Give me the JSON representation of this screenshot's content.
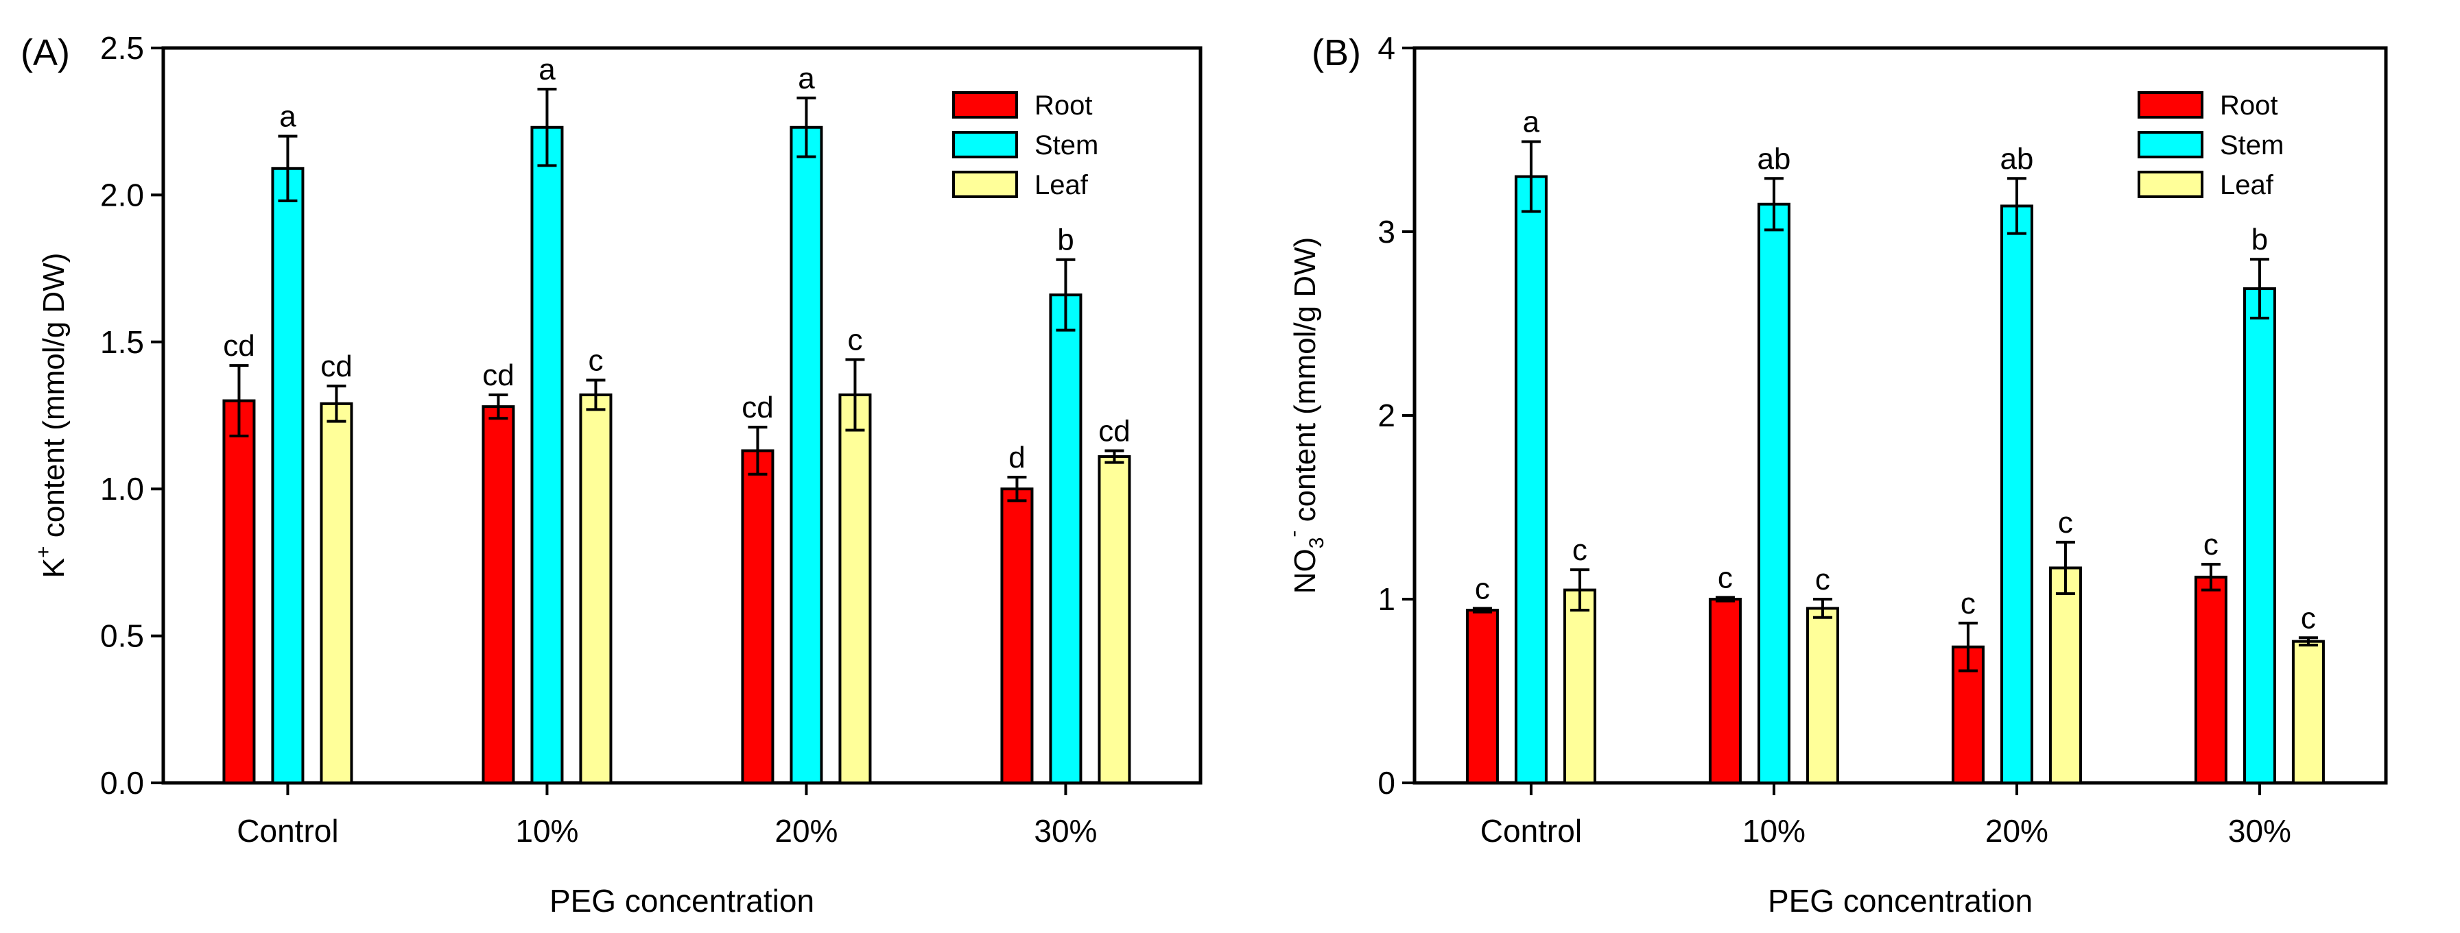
{
  "chart_data": [
    {
      "type": "bar",
      "panel_label": "(A)",
      "title": "",
      "xlabel": "PEG concentration",
      "ylabel_main": "K",
      "ylabel_sup": "+",
      "ylabel_rest": " content (mmol/g DW)",
      "categories": [
        "Control",
        "10%",
        "20%",
        "30%"
      ],
      "ylim": [
        0,
        2.5
      ],
      "yticks": [
        "0.0",
        "0.5",
        "1.0",
        "1.5",
        "2.0",
        "2.5"
      ],
      "ytick_values": [
        0,
        0.5,
        1.0,
        1.5,
        2.0,
        2.5
      ],
      "legend_position": "top-right",
      "series": [
        {
          "name": "Root",
          "color": "#ff0000",
          "values": [
            1.3,
            1.28,
            1.13,
            1.0
          ],
          "errors": [
            0.12,
            0.04,
            0.08,
            0.04
          ],
          "letters": [
            "cd",
            "cd",
            "cd",
            "d"
          ]
        },
        {
          "name": "Stem",
          "color": "#00ffff",
          "values": [
            2.09,
            2.23,
            2.23,
            1.66
          ],
          "errors": [
            0.11,
            0.13,
            0.1,
            0.12
          ],
          "letters": [
            "a",
            "a",
            "a",
            "b"
          ]
        },
        {
          "name": "Leaf",
          "color": "#ffff99",
          "values": [
            1.29,
            1.32,
            1.32,
            1.11
          ],
          "errors": [
            0.06,
            0.05,
            0.12,
            0.02
          ],
          "letters": [
            "cd",
            "c",
            "c",
            "cd"
          ]
        }
      ]
    },
    {
      "type": "bar",
      "panel_label": "(B)",
      "title": "",
      "xlabel": "PEG concentration",
      "ylabel_main": "NO",
      "ylabel_sub": "3",
      "ylabel_sup": "-",
      "ylabel_rest": " content (mmol/g DW)",
      "categories": [
        "Control",
        "10%",
        "20%",
        "30%"
      ],
      "ylim": [
        0,
        4
      ],
      "yticks": [
        "0",
        "1",
        "2",
        "3",
        "4"
      ],
      "ytick_values": [
        0,
        1,
        2,
        3,
        4
      ],
      "legend_position": "top-right",
      "series": [
        {
          "name": "Root",
          "color": "#ff0000",
          "values": [
            0.94,
            1.0,
            0.74,
            1.12
          ],
          "errors": [
            0.01,
            0.01,
            0.13,
            0.07
          ],
          "letters": [
            "c",
            "c",
            "c",
            "c"
          ]
        },
        {
          "name": "Stem",
          "color": "#00ffff",
          "values": [
            3.3,
            3.15,
            3.14,
            2.69
          ],
          "errors": [
            0.19,
            0.14,
            0.15,
            0.16
          ],
          "letters": [
            "a",
            "ab",
            "ab",
            "b"
          ]
        },
        {
          "name": "Leaf",
          "color": "#ffff99",
          "values": [
            1.05,
            0.95,
            1.17,
            0.77
          ],
          "errors": [
            0.11,
            0.05,
            0.14,
            0.02
          ],
          "letters": [
            "c",
            "c",
            "c",
            "c"
          ]
        }
      ]
    }
  ]
}
